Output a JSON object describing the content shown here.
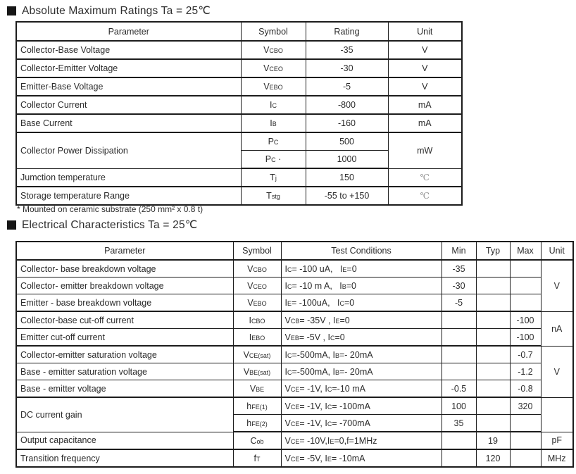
{
  "page": {
    "section1_title": "Absolute Maximum Ratings Ta = 25℃",
    "footnote": "* Mounted on ceramic substrate (250 mm² x 0.8 t)",
    "section2_title": "Electrical Characteristics Ta = 25℃"
  },
  "abs_max": {
    "headers": [
      "Parameter",
      "Symbol",
      "Rating",
      "Unit"
    ],
    "rows": [
      {
        "parameter": "Collector-Base Voltage",
        "symbol": "V~CBO~",
        "rating": "-35",
        "unit": "V"
      },
      {
        "parameter": "Collector-Emitter Voltage",
        "symbol": "V~CEO~",
        "rating": "-30",
        "unit": "V"
      },
      {
        "parameter": "Emitter-Base Voltage",
        "symbol": "V~EBO~",
        "rating": "-5",
        "unit": "V"
      },
      {
        "parameter": "Collector Current",
        "symbol": "I~C~",
        "rating": "-800",
        "unit": "mA"
      },
      {
        "parameter": "Base Current",
        "symbol": "I~B~",
        "rating": "-160",
        "unit": "mA"
      },
      {
        "parameter": "Collector Power Dissipation",
        "symbol": "P~C~",
        "rating": "500",
        "unit": "mW"
      },
      {
        "symbol": "P~C~ ·",
        "rating": "1000"
      },
      {
        "parameter": "Jumction temperature",
        "symbol": "T~j~",
        "rating": "150",
        "unit": "℃"
      },
      {
        "parameter": "Storage temperature Range",
        "symbol": "T~stg~",
        "rating": "-55 to +150",
        "unit": "℃"
      }
    ]
  },
  "elec": {
    "headers": [
      "Parameter",
      "Symbol",
      "Test Conditions",
      "Min",
      "Typ",
      "Max",
      "Unit"
    ],
    "rows": [
      {
        "parameter": "Collector- base breakdown voltage",
        "symbol": "V~CBO~",
        "test_conditions": "I~C~= -100 uA,   I~E~=0",
        "min": "-35",
        "typ": "",
        "max": "",
        "unit": "V"
      },
      {
        "parameter": "Collector- emitter breakdown voltage",
        "symbol": "V~CEO~",
        "test_conditions": "I~C~= -10 m A,   I~B~=0",
        "min": "-30",
        "typ": "",
        "max": ""
      },
      {
        "parameter": "Emitter - base breakdown voltage",
        "symbol": "V~EBO~",
        "test_conditions": "I~E~= -100uA,   I~C~=0",
        "min": "-5",
        "typ": "",
        "max": ""
      },
      {
        "parameter": "Collector-base cut-off current",
        "symbol": "I~CBO~",
        "test_conditions": "V~CB~= -35V , I~E~=0",
        "min": "",
        "typ": "",
        "max": "-100",
        "unit": "nA"
      },
      {
        "parameter": "Emitter cut-off current",
        "symbol": "I~EBO~",
        "test_conditions": "V~EB~= -5V , I~C~=0",
        "min": "",
        "typ": "",
        "max": "-100"
      },
      {
        "parameter": "Collector-emitter saturation voltage",
        "symbol": "V~CE(sat)~",
        "test_conditions": "I~C~=-500mA, I~B~=- 20mA",
        "min": "",
        "typ": "",
        "max": "-0.7",
        "unit": "V"
      },
      {
        "parameter": "Base - emitter saturation voltage",
        "symbol": "V~BE(sat)~",
        "test_conditions": "I~C~=-500mA, I~B~=- 20mA",
        "min": "",
        "typ": "",
        "max": "-1.2"
      },
      {
        "parameter": "Base - emitter voltage",
        "symbol": "V~BE~",
        "test_conditions": "V~CE~= -1V, I~C~=-10 mA",
        "min": "-0.5",
        "typ": "",
        "max": "-0.8"
      },
      {
        "parameter": "DC current gain",
        "symbol": "h~FE(1)~",
        "test_conditions": "V~CE~= -1V, I~C~= -100mA",
        "min": "100",
        "typ": "",
        "max": "320",
        "unit": ""
      },
      {
        "symbol": "h~FE(2)~",
        "test_conditions": "V~CE~= -1V, I~C~= -700mA",
        "min": "35",
        "typ": "",
        "max": ""
      },
      {
        "parameter": "Output capacitance",
        "symbol": "C~ob~",
        "test_conditions": "V~CE~= -10V,I~E~=0,f=1MHz",
        "min": "",
        "typ": "19",
        "max": "",
        "unit": "pF"
      },
      {
        "parameter": "Transition frequency",
        "symbol": "f~T~",
        "test_conditions": "V~CE~= -5V, I~E~= -10mA",
        "min": "",
        "typ": "120",
        "max": "",
        "unit": "MHz"
      }
    ]
  }
}
